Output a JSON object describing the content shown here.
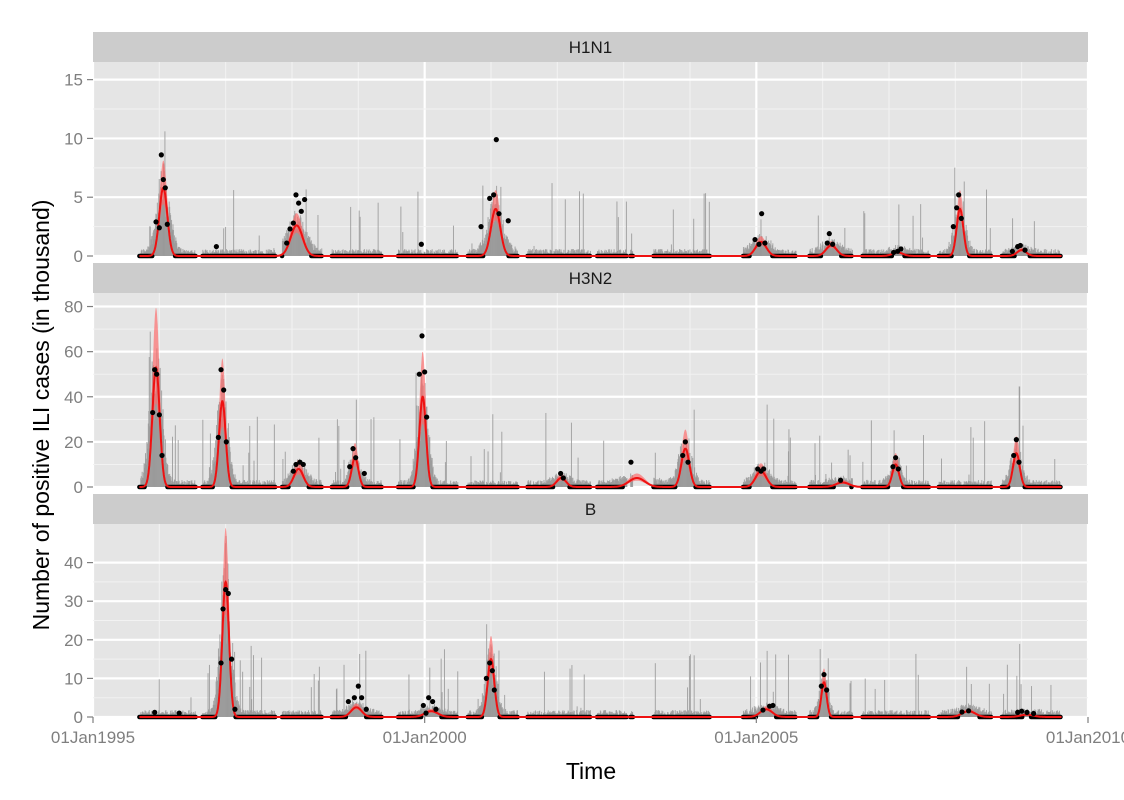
{
  "chart_data": {
    "type": "line",
    "x_axis": {
      "label": "Time",
      "ticks": [
        "01Jan1995",
        "01Jan2000",
        "01Jan2005",
        "01Jan2010"
      ],
      "range": [
        1995.0,
        2010.0
      ]
    },
    "y_axis_label": "Number of positive ILI cases (in thousand)",
    "layers": [
      "observed weekly data (grey bars)",
      "observed points (black)",
      "fitted curve with band (red)"
    ],
    "colors": {
      "bars": "#999999",
      "points": "#000000",
      "fit": "#ee1111",
      "band": "#ff6666"
    },
    "panels": [
      {
        "name": "H1N1",
        "ylim": [
          0,
          16.5
        ],
        "y_ticks": [
          0,
          5,
          10,
          15
        ],
        "y_tick_labels": [
          "0",
          "5",
          "10",
          "15"
        ],
        "peaks": [
          {
            "t": 1996.06,
            "height": 5.8,
            "width": 0.06
          },
          {
            "t": 1998.07,
            "height": 2.6,
            "width": 0.09
          },
          {
            "t": 2001.07,
            "height": 4.0,
            "width": 0.07
          },
          {
            "t": 2005.07,
            "height": 1.2,
            "width": 0.08
          },
          {
            "t": 2006.13,
            "height": 0.9,
            "width": 0.08
          },
          {
            "t": 2007.13,
            "height": 0.3,
            "width": 0.08
          },
          {
            "t": 2008.07,
            "height": 4.0,
            "width": 0.05
          },
          {
            "t": 2009.0,
            "height": 0.5,
            "width": 0.07
          }
        ],
        "data_points": [
          [
            1995.95,
            2.9
          ],
          [
            1996.0,
            2.4
          ],
          [
            1996.03,
            8.6
          ],
          [
            1996.06,
            6.5
          ],
          [
            1996.09,
            5.8
          ],
          [
            1996.12,
            2.7
          ],
          [
            1996.86,
            0.8
          ],
          [
            1997.92,
            1.1
          ],
          [
            1997.97,
            2.3
          ],
          [
            1998.02,
            2.8
          ],
          [
            1998.06,
            5.2
          ],
          [
            1998.1,
            4.5
          ],
          [
            1998.14,
            3.8
          ],
          [
            1998.19,
            4.8
          ],
          [
            1999.95,
            1.0
          ],
          [
            2000.85,
            2.5
          ],
          [
            2000.98,
            4.9
          ],
          [
            2001.04,
            5.2
          ],
          [
            2001.08,
            9.9
          ],
          [
            2001.12,
            3.6
          ],
          [
            2001.26,
            3.0
          ],
          [
            2004.98,
            1.4
          ],
          [
            2005.04,
            1.0
          ],
          [
            2005.08,
            3.6
          ],
          [
            2005.13,
            1.1
          ],
          [
            2006.07,
            1.1
          ],
          [
            2006.1,
            1.9
          ],
          [
            2006.15,
            1.0
          ],
          [
            2007.07,
            0.3
          ],
          [
            2007.13,
            0.4
          ],
          [
            2007.18,
            0.6
          ],
          [
            2007.97,
            2.5
          ],
          [
            2008.02,
            4.1
          ],
          [
            2008.05,
            5.2
          ],
          [
            2008.09,
            3.2
          ],
          [
            2008.86,
            0.4
          ],
          [
            2008.94,
            0.8
          ],
          [
            2008.98,
            0.9
          ],
          [
            2009.05,
            0.5
          ]
        ],
        "band_width": 0.4
      },
      {
        "name": "H3N2",
        "ylim": [
          0,
          86
        ],
        "y_ticks": [
          0,
          20,
          40,
          60,
          80
        ],
        "y_tick_labels": [
          "0",
          "20",
          "40",
          "60",
          "80"
        ],
        "peaks": [
          {
            "t": 1995.95,
            "height": 53,
            "width": 0.055
          },
          {
            "t": 1996.95,
            "height": 38,
            "width": 0.05
          },
          {
            "t": 1998.1,
            "height": 8,
            "width": 0.07
          },
          {
            "t": 1998.95,
            "height": 13,
            "width": 0.05
          },
          {
            "t": 1999.97,
            "height": 40,
            "width": 0.05
          },
          {
            "t": 2002.06,
            "height": 4,
            "width": 0.07
          },
          {
            "t": 2003.2,
            "height": 4,
            "width": 0.12
          },
          {
            "t": 2003.93,
            "height": 17,
            "width": 0.06
          },
          {
            "t": 2005.07,
            "height": 7,
            "width": 0.08
          },
          {
            "t": 2006.3,
            "height": 2,
            "width": 0.1
          },
          {
            "t": 2007.1,
            "height": 10,
            "width": 0.05
          },
          {
            "t": 2008.92,
            "height": 15,
            "width": 0.05
          }
        ],
        "data_points": [
          [
            1995.9,
            33
          ],
          [
            1995.93,
            52
          ],
          [
            1995.96,
            50
          ],
          [
            1996.0,
            32
          ],
          [
            1996.04,
            14
          ],
          [
            1996.89,
            22
          ],
          [
            1996.93,
            52
          ],
          [
            1996.97,
            43
          ],
          [
            1997.01,
            20
          ],
          [
            1998.02,
            7
          ],
          [
            1998.06,
            10
          ],
          [
            1998.12,
            11
          ],
          [
            1998.17,
            10
          ],
          [
            1998.87,
            9
          ],
          [
            1998.92,
            17
          ],
          [
            1998.96,
            13
          ],
          [
            1999.09,
            6
          ],
          [
            1999.92,
            50
          ],
          [
            1999.96,
            67
          ],
          [
            2000.0,
            51
          ],
          [
            2000.03,
            31
          ],
          [
            2002.05,
            6
          ],
          [
            2002.09,
            4
          ],
          [
            2003.11,
            11
          ],
          [
            2003.89,
            14
          ],
          [
            2003.93,
            20
          ],
          [
            2003.97,
            11
          ],
          [
            2005.02,
            8
          ],
          [
            2005.07,
            7
          ],
          [
            2005.11,
            8
          ],
          [
            2006.27,
            3
          ],
          [
            2007.06,
            9
          ],
          [
            2007.1,
            13
          ],
          [
            2007.14,
            8
          ],
          [
            2008.88,
            14
          ],
          [
            2008.92,
            21
          ],
          [
            2008.96,
            11
          ]
        ],
        "band_width": 0.5
      },
      {
        "name": "B",
        "ylim": [
          0,
          50
        ],
        "y_ticks": [
          0,
          10,
          20,
          30,
          40
        ],
        "y_tick_labels": [
          "0",
          "10",
          "20",
          "30",
          "40"
        ],
        "peaks": [
          {
            "t": 1997.0,
            "height": 35,
            "width": 0.05
          },
          {
            "t": 1998.97,
            "height": 2.5,
            "width": 0.08
          },
          {
            "t": 2000.1,
            "height": 1.5,
            "width": 0.1
          },
          {
            "t": 2001.0,
            "height": 15,
            "width": 0.05
          },
          {
            "t": 2005.15,
            "height": 2,
            "width": 0.09
          },
          {
            "t": 2006.02,
            "height": 9,
            "width": 0.04
          },
          {
            "t": 2008.2,
            "height": 1.5,
            "width": 0.1
          },
          {
            "t": 2009.08,
            "height": 0.6,
            "width": 0.1
          }
        ],
        "data_points": [
          [
            1995.93,
            1.2
          ],
          [
            1996.3,
            1.0
          ],
          [
            1996.93,
            14
          ],
          [
            1996.96,
            28
          ],
          [
            1997.0,
            33
          ],
          [
            1997.04,
            32
          ],
          [
            1997.09,
            15
          ],
          [
            1997.14,
            2
          ],
          [
            1998.85,
            4
          ],
          [
            1998.94,
            5
          ],
          [
            1999.0,
            8
          ],
          [
            1999.05,
            5
          ],
          [
            1999.12,
            2
          ],
          [
            1999.98,
            3
          ],
          [
            2000.02,
            1
          ],
          [
            2000.06,
            5
          ],
          [
            2000.12,
            4
          ],
          [
            2000.17,
            2
          ],
          [
            2000.93,
            10
          ],
          [
            2000.98,
            14
          ],
          [
            2001.02,
            12
          ],
          [
            2001.05,
            7
          ],
          [
            2005.1,
            1.8
          ],
          [
            2005.2,
            2.8
          ],
          [
            2005.25,
            3.0
          ],
          [
            2005.98,
            8
          ],
          [
            2006.02,
            11
          ],
          [
            2006.06,
            7
          ],
          [
            2008.1,
            1.3
          ],
          [
            2008.2,
            1.6
          ],
          [
            2008.94,
            1.2
          ],
          [
            2009.0,
            1.5
          ],
          [
            2009.08,
            1.2
          ],
          [
            2009.18,
            0.9
          ]
        ],
        "band_width": 0.4
      }
    ]
  }
}
